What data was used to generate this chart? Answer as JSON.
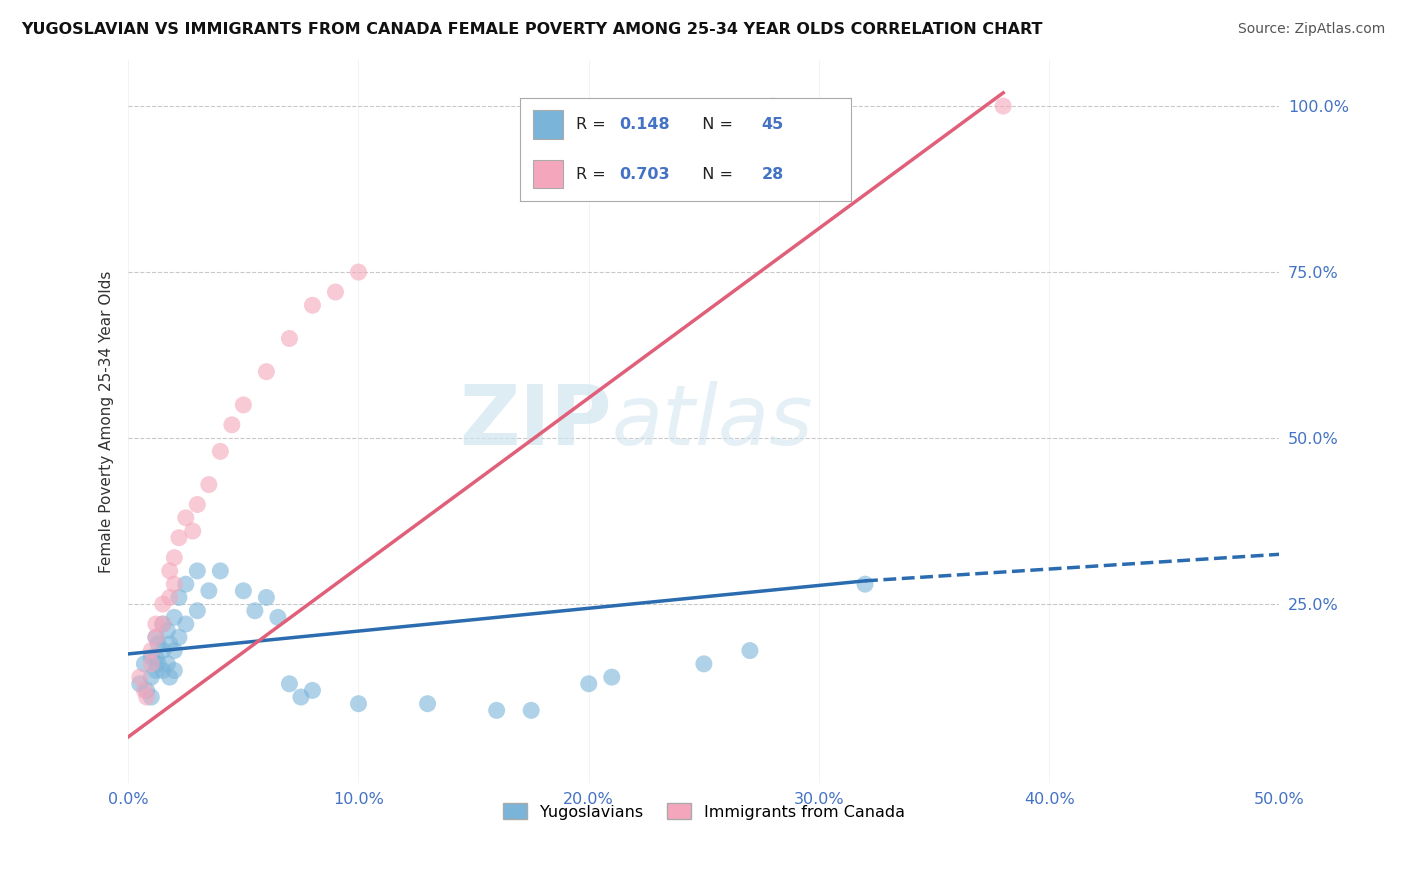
{
  "title": "YUGOSLAVIAN VS IMMIGRANTS FROM CANADA FEMALE POVERTY AMONG 25-34 YEAR OLDS CORRELATION CHART",
  "source": "Source: ZipAtlas.com",
  "ylabel": "Female Poverty Among 25-34 Year Olds",
  "xlim": [
    0.0,
    0.5
  ],
  "ylim": [
    -0.02,
    1.07
  ],
  "xticks": [
    0.0,
    0.1,
    0.2,
    0.3,
    0.4,
    0.5
  ],
  "xtick_labels": [
    "0.0%",
    "10.0%",
    "20.0%",
    "30.0%",
    "40.0%",
    "50.0%"
  ],
  "yticks": [
    0.25,
    0.5,
    0.75,
    1.0
  ],
  "ytick_labels": [
    "25.0%",
    "50.0%",
    "75.0%",
    "100.0%"
  ],
  "blue_color": "#7ab5d9",
  "pink_color": "#f4a7bc",
  "blue_line_color": "#2b6cb0",
  "pink_line_color": "#e0607a",
  "watermark_zip": "ZIP",
  "watermark_atlas": "atlas",
  "background_color": "#ffffff",
  "grid_color": "#cccccc",
  "blue_scatter": [
    [
      0.005,
      0.13
    ],
    [
      0.007,
      0.16
    ],
    [
      0.008,
      0.12
    ],
    [
      0.01,
      0.17
    ],
    [
      0.01,
      0.14
    ],
    [
      0.01,
      0.11
    ],
    [
      0.012,
      0.2
    ],
    [
      0.012,
      0.17
    ],
    [
      0.012,
      0.15
    ],
    [
      0.013,
      0.19
    ],
    [
      0.013,
      0.16
    ],
    [
      0.015,
      0.22
    ],
    [
      0.015,
      0.18
    ],
    [
      0.015,
      0.15
    ],
    [
      0.017,
      0.21
    ],
    [
      0.017,
      0.16
    ],
    [
      0.018,
      0.19
    ],
    [
      0.018,
      0.14
    ],
    [
      0.02,
      0.23
    ],
    [
      0.02,
      0.18
    ],
    [
      0.02,
      0.15
    ],
    [
      0.022,
      0.26
    ],
    [
      0.022,
      0.2
    ],
    [
      0.025,
      0.28
    ],
    [
      0.025,
      0.22
    ],
    [
      0.03,
      0.3
    ],
    [
      0.03,
      0.24
    ],
    [
      0.035,
      0.27
    ],
    [
      0.04,
      0.3
    ],
    [
      0.05,
      0.27
    ],
    [
      0.055,
      0.24
    ],
    [
      0.06,
      0.26
    ],
    [
      0.065,
      0.23
    ],
    [
      0.07,
      0.13
    ],
    [
      0.075,
      0.11
    ],
    [
      0.08,
      0.12
    ],
    [
      0.1,
      0.1
    ],
    [
      0.13,
      0.1
    ],
    [
      0.16,
      0.09
    ],
    [
      0.175,
      0.09
    ],
    [
      0.2,
      0.13
    ],
    [
      0.21,
      0.14
    ],
    [
      0.25,
      0.16
    ],
    [
      0.27,
      0.18
    ],
    [
      0.32,
      0.28
    ]
  ],
  "pink_scatter": [
    [
      0.005,
      0.14
    ],
    [
      0.007,
      0.12
    ],
    [
      0.008,
      0.11
    ],
    [
      0.01,
      0.18
    ],
    [
      0.01,
      0.16
    ],
    [
      0.012,
      0.22
    ],
    [
      0.012,
      0.2
    ],
    [
      0.015,
      0.25
    ],
    [
      0.015,
      0.22
    ],
    [
      0.018,
      0.3
    ],
    [
      0.018,
      0.26
    ],
    [
      0.02,
      0.32
    ],
    [
      0.02,
      0.28
    ],
    [
      0.022,
      0.35
    ],
    [
      0.025,
      0.38
    ],
    [
      0.028,
      0.36
    ],
    [
      0.03,
      0.4
    ],
    [
      0.035,
      0.43
    ],
    [
      0.04,
      0.48
    ],
    [
      0.045,
      0.52
    ],
    [
      0.05,
      0.55
    ],
    [
      0.06,
      0.6
    ],
    [
      0.07,
      0.65
    ],
    [
      0.08,
      0.7
    ],
    [
      0.09,
      0.72
    ],
    [
      0.1,
      0.75
    ],
    [
      0.28,
      1.0
    ],
    [
      0.38,
      1.0
    ]
  ],
  "legend_items": [
    {
      "label": "R = 0.148   N = 45",
      "color": "#7ab5d9"
    },
    {
      "label": "R = 0.703   N = 28",
      "color": "#f4a7bc"
    }
  ],
  "r_values": [
    "0.148",
    "0.703"
  ],
  "n_values": [
    "45",
    "28"
  ]
}
